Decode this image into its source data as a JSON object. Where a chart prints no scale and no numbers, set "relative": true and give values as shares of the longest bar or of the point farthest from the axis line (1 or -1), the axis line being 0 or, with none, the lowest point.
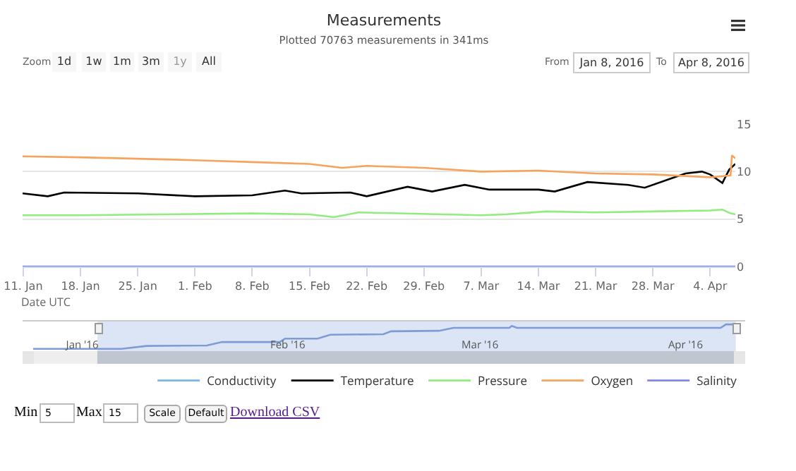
{
  "chart_data": [
    {
      "type": "line",
      "title": "Measurements",
      "subtitle": "Plotted 70763 measurements in 341ms",
      "xlabel": "Date UTC",
      "xlim": [
        "2016-01-10T22:00",
        "2016-04-07T02:00"
      ],
      "xticks": [
        {
          "value": "2016-01-11",
          "label": "11. Jan"
        },
        {
          "value": "2016-01-18",
          "label": "18. Jan"
        },
        {
          "value": "2016-01-25",
          "label": "25. Jan"
        },
        {
          "value": "2016-02-01",
          "label": "1. Feb"
        },
        {
          "value": "2016-02-08",
          "label": "8. Feb"
        },
        {
          "value": "2016-02-15",
          "label": "15. Feb"
        },
        {
          "value": "2016-02-22",
          "label": "22. Feb"
        },
        {
          "value": "2016-02-29",
          "label": "29. Feb"
        },
        {
          "value": "2016-03-07",
          "label": "7. Mar"
        },
        {
          "value": "2016-03-14",
          "label": "14. Mar"
        },
        {
          "value": "2016-03-21",
          "label": "21. Mar"
        },
        {
          "value": "2016-03-28",
          "label": "28. Mar"
        },
        {
          "value": "2016-04-04",
          "label": "4. Apr"
        }
      ],
      "ylim": [
        0,
        15
      ],
      "yticks": [
        0,
        5,
        10,
        15
      ],
      "grid": "y",
      "legend": "bottom right",
      "series": [
        {
          "name": "Conductivity",
          "color": "#7cb5ec",
          "values": [
            null,
            null
          ]
        },
        {
          "name": "Temperature",
          "color": "#000000",
          "x": [
            "2016-01-10T22:00",
            "2016-01-14",
            "2016-01-16",
            "2016-01-25",
            "2016-02-01",
            "2016-02-08",
            "2016-02-12",
            "2016-02-14",
            "2016-02-20",
            "2016-02-22",
            "2016-02-27",
            "2016-03-01",
            "2016-03-05",
            "2016-03-08",
            "2016-03-14",
            "2016-03-16",
            "2016-03-20",
            "2016-03-25",
            "2016-03-27",
            "2016-03-30",
            "2016-04-01",
            "2016-04-03",
            "2016-04-04",
            "2016-04-05T12:00",
            "2016-04-06T08:00",
            "2016-04-07T02:00"
          ],
          "values": [
            7.7,
            7.4,
            7.8,
            7.7,
            7.4,
            7.5,
            8.0,
            7.7,
            7.8,
            7.4,
            8.4,
            7.9,
            8.6,
            8.1,
            8.1,
            7.9,
            8.9,
            8.6,
            8.3,
            9.2,
            9.8,
            10.0,
            9.7,
            8.8,
            10.2,
            10.8
          ]
        },
        {
          "name": "Pressure",
          "color": "#90ed7d",
          "x": [
            "2016-01-10T22:00",
            "2016-01-18",
            "2016-02-08",
            "2016-02-15",
            "2016-02-18",
            "2016-02-21",
            "2016-03-07",
            "2016-03-10",
            "2016-03-15",
            "2016-03-21",
            "2016-03-28",
            "2016-04-04",
            "2016-04-05T12:00",
            "2016-04-06T12:00",
            "2016-04-07T02:00"
          ],
          "values": [
            5.4,
            5.4,
            5.6,
            5.5,
            5.2,
            5.7,
            5.4,
            5.5,
            5.8,
            5.7,
            5.8,
            5.9,
            6.0,
            5.6,
            5.5
          ]
        },
        {
          "name": "Oxygen",
          "color": "#f7a35c",
          "x": [
            "2016-01-10T22:00",
            "2016-01-18",
            "2016-02-01",
            "2016-02-08",
            "2016-02-15",
            "2016-02-19",
            "2016-02-22",
            "2016-02-29",
            "2016-03-07",
            "2016-03-14",
            "2016-03-21",
            "2016-03-28",
            "2016-04-04",
            "2016-04-06T12:00",
            "2016-04-06T16:00",
            "2016-04-07T02:00"
          ],
          "values": [
            11.6,
            11.5,
            11.2,
            11.0,
            10.8,
            10.4,
            10.6,
            10.4,
            10.0,
            10.1,
            9.8,
            9.7,
            9.4,
            9.6,
            11.7,
            11.4
          ]
        },
        {
          "name": "Salinity",
          "color": "#8085e9",
          "x": [
            "2016-01-10T22:00",
            "2016-04-07T02:00"
          ],
          "values": [
            0,
            0
          ]
        }
      ],
      "annotations": [
        "Zoom",
        "1d",
        "1w",
        "1m",
        "3m",
        "1y",
        "All",
        "From",
        "Jan 8, 2016",
        "To",
        "Apr 8, 2016",
        "Min",
        "5",
        "Max",
        "15",
        "Scale",
        "Default",
        "Download CSV"
      ]
    },
    {
      "type": "line",
      "relative": true,
      "color": "#7f9bd6",
      "tick_labels": "x",
      "bands": [
        {
          "axis": "x",
          "from": "2016-01-03T07:00",
          "to": "2016-04-08T14:00",
          "color": "#dbe5f6"
        }
      ],
      "xlim": [
        "2015-12-23",
        "2016-04-10"
      ],
      "xticks": [
        {
          "value": "2016-01-01",
          "label": "Jan '16"
        },
        {
          "value": "2016-02-01",
          "label": "Feb '16"
        },
        {
          "value": "2016-03-01",
          "label": "Mar '16"
        },
        {
          "value": "2016-04-01",
          "label": "Apr '16"
        }
      ],
      "x": [
        "2015-12-24T14:00",
        "2016-01-06T22:00",
        "2016-01-10T17:00",
        "2016-01-19T19:00",
        "2016-01-22T02:00",
        "2016-01-30T19:00",
        "2016-01-31T14:00",
        "2016-02-05T12:00",
        "2016-02-07T10:00",
        "2016-02-15T10:00",
        "2016-02-16T14:00",
        "2016-02-23T19:00",
        "2016-02-26",
        "2016-03-05T10:00",
        "2016-03-05T19:00",
        "2016-03-06T14:00",
        "2016-04-06T07:00",
        "2016-04-07T02:00",
        "2016-04-08T14:00"
      ],
      "values": [
        0,
        0,
        0.12,
        0.14,
        0.28,
        0.28,
        0.42,
        0.42,
        0.58,
        0.6,
        0.72,
        0.74,
        0.86,
        0.86,
        0.94,
        0.86,
        0.86,
        1,
        1
      ]
    }
  ]
}
